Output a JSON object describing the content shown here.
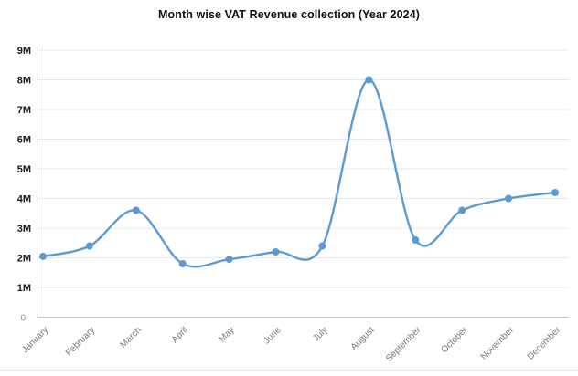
{
  "window": {
    "background": "#ffffff"
  },
  "chart_data": {
    "type": "line",
    "title": "Month wise VAT Revenue collection (Year 2024)",
    "categories": [
      "January",
      "February",
      "March",
      "April",
      "May",
      "June",
      "July",
      "August",
      "September",
      "October",
      "November",
      "December"
    ],
    "series": [
      {
        "name": "VAT Revenue collection",
        "values_millions": [
          2.05,
          2.4,
          3.6,
          1.8,
          1.95,
          2.2,
          2.4,
          8.0,
          2.6,
          3.6,
          4.0,
          4.2
        ]
      }
    ],
    "xlabel": "",
    "ylabel": "",
    "ylim_millions": [
      0,
      9
    ],
    "y_tick_labels": [
      "0",
      "1M",
      "2M",
      "3M",
      "4M",
      "5M",
      "6M",
      "7M",
      "8M",
      "9M"
    ],
    "grid": true,
    "legend_position": "none",
    "line_style": "smooth-spline",
    "marker": "circle",
    "x_label_rotation_deg": -45,
    "colors": {
      "line": "#5b9bd5",
      "marker": "#5b9bd5",
      "gridline": "#e8e8e8",
      "axis_line": "#c9c9c9",
      "x_tick_label": "#777777",
      "y_tick_label": "#1a1a1a",
      "zero_label": "#9a9a9a",
      "title": "#111111",
      "divider": "#e6e6e6"
    }
  }
}
